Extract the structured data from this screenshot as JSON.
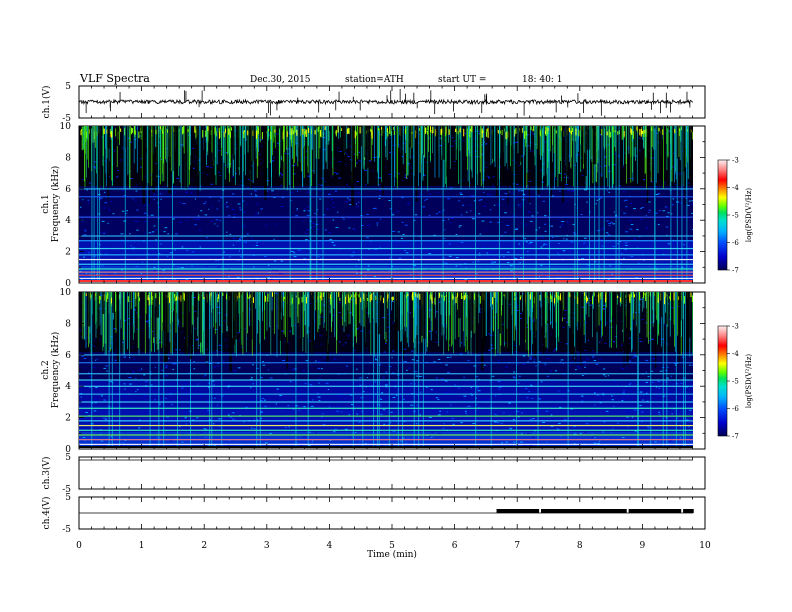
{
  "header": {
    "title": "VLF  Spectra",
    "date": "Dec.30, 2015",
    "station": "station=ATH",
    "start_label": "start  UT  =",
    "start_time": "18: 40: 1"
  },
  "colorbar": {
    "ticks": [
      "-3",
      "-4",
      "-5",
      "-6",
      "-7"
    ],
    "label": "log(PSD(V²/Hz)",
    "colors": [
      "#000066",
      "#0000cc",
      "#0044ff",
      "#00a0ff",
      "#00e0e0",
      "#00e070",
      "#40ff00",
      "#ffff00",
      "#ff8000",
      "#ff0000",
      "#ff9090",
      "#ffdddd"
    ]
  },
  "chart_data": [
    {
      "type": "line",
      "name": "ch1-waveform",
      "ylabel": "ch.1(V)",
      "ylim": [
        -5,
        5
      ],
      "yticks": [
        "5",
        "-5"
      ],
      "description_level": -0.5
    },
    {
      "type": "heatmap",
      "name": "ch1-spectrogram",
      "ylabel": "ch.1\nFrequency (kHz)",
      "ylabel_lines": [
        "ch.1",
        "Frequency  (kHz)"
      ],
      "ylim": [
        0,
        10
      ],
      "yticks": [
        "10",
        "8",
        "6",
        "4",
        "2",
        "0"
      ],
      "zlim": [
        -7,
        -3
      ]
    },
    {
      "type": "heatmap",
      "name": "ch2-spectrogram",
      "ylabel_lines": [
        "ch.2",
        "Frequency  (kHz)"
      ],
      "ylim": [
        0,
        10
      ],
      "yticks": [
        "10",
        "8",
        "6",
        "4",
        "2",
        "0"
      ],
      "zlim": [
        -7,
        -3
      ]
    },
    {
      "type": "line",
      "name": "ch3-waveform",
      "ylabel": "ch.3(V)",
      "ylim": [
        -5,
        5
      ],
      "yticks": [
        "5",
        "-5"
      ],
      "level": 0
    },
    {
      "type": "line",
      "name": "ch4-waveform",
      "ylabel": "ch.4(V)",
      "ylim": [
        -5,
        5
      ],
      "yticks": [
        "5",
        "-5"
      ],
      "level": 0,
      "step_segments": [
        [
          6.67,
          7.35
        ],
        [
          7.38,
          8.75
        ],
        [
          8.78,
          9.62
        ],
        [
          9.65,
          9.82
        ]
      ],
      "step_level": 0.3
    }
  ],
  "xaxis": {
    "label": "Time  (min)",
    "xlim": [
      0,
      10
    ],
    "ticks": [
      "0",
      "1",
      "2",
      "3",
      "4",
      "5",
      "6",
      "7",
      "8",
      "9",
      "10"
    ]
  }
}
